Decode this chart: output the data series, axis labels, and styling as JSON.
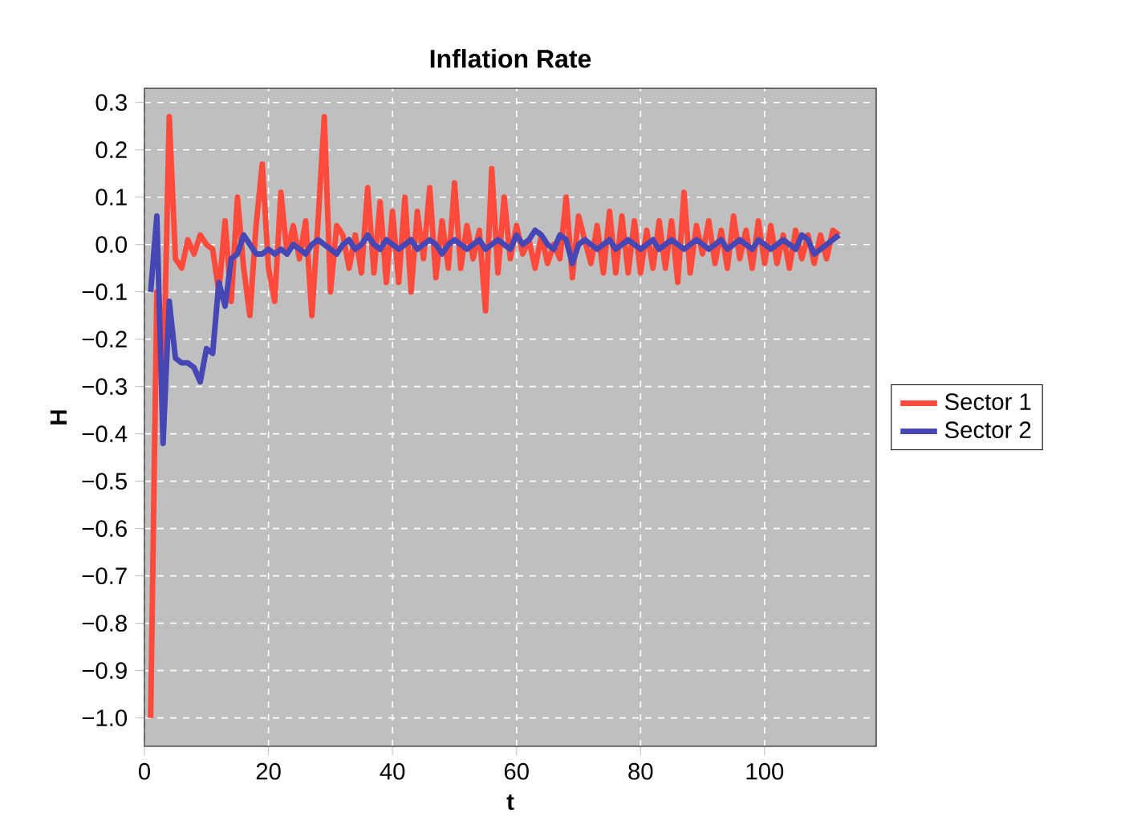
{
  "chart_data": {
    "type": "line",
    "title": "Inflation Rate",
    "xlabel": "t",
    "ylabel": "H",
    "x": [
      1,
      2,
      3,
      4,
      5,
      6,
      7,
      8,
      9,
      10,
      11,
      12,
      13,
      14,
      15,
      16,
      17,
      18,
      19,
      20,
      21,
      22,
      23,
      24,
      25,
      26,
      27,
      28,
      29,
      30,
      31,
      32,
      33,
      34,
      35,
      36,
      37,
      38,
      39,
      40,
      41,
      42,
      43,
      44,
      45,
      46,
      47,
      48,
      49,
      50,
      51,
      52,
      53,
      54,
      55,
      56,
      57,
      58,
      59,
      60,
      61,
      62,
      63,
      64,
      65,
      66,
      67,
      68,
      69,
      70,
      71,
      72,
      73,
      74,
      75,
      76,
      77,
      78,
      79,
      80,
      81,
      82,
      83,
      84,
      85,
      86,
      87,
      88,
      89,
      90,
      91,
      92,
      93,
      94,
      95,
      96,
      97,
      98,
      99,
      100,
      101,
      102,
      103,
      104,
      105,
      106,
      107,
      108,
      109,
      110,
      111,
      112
    ],
    "series": [
      {
        "name": "Sector 1",
        "color": "#ff4a3c",
        "values": [
          -1.0,
          -0.1,
          -0.33,
          0.27,
          -0.03,
          -0.05,
          0.01,
          -0.02,
          0.02,
          0.0,
          -0.01,
          -0.1,
          0.05,
          -0.12,
          0.1,
          -0.05,
          -0.15,
          0.04,
          0.17,
          -0.05,
          -0.12,
          0.11,
          -0.02,
          0.04,
          -0.03,
          0.05,
          -0.15,
          0.05,
          0.27,
          -0.1,
          0.04,
          0.02,
          -0.05,
          0.02,
          -0.06,
          0.12,
          -0.06,
          0.09,
          -0.08,
          0.07,
          -0.08,
          0.1,
          -0.1,
          0.07,
          -0.03,
          0.12,
          -0.07,
          0.05,
          -0.05,
          0.13,
          -0.05,
          0.04,
          -0.03,
          0.03,
          -0.14,
          0.16,
          -0.06,
          0.1,
          -0.03,
          0.04,
          -0.02,
          0.01,
          -0.05,
          0.02,
          -0.04,
          0.0,
          -0.03,
          0.1,
          -0.07,
          0.06,
          0.01,
          -0.04,
          0.04,
          -0.06,
          0.07,
          -0.06,
          0.06,
          -0.06,
          0.05,
          -0.06,
          0.03,
          -0.05,
          0.05,
          -0.05,
          0.05,
          -0.08,
          0.11,
          -0.06,
          0.04,
          -0.02,
          0.05,
          -0.04,
          0.03,
          -0.05,
          0.06,
          -0.03,
          0.03,
          -0.05,
          0.05,
          -0.04,
          0.04,
          -0.04,
          0.02,
          -0.05,
          0.03,
          -0.03,
          0.02,
          -0.04,
          0.02,
          -0.03,
          0.03,
          0.02
        ]
      },
      {
        "name": "Sector 2",
        "color": "#4646b4",
        "values": [
          -0.1,
          0.06,
          -0.42,
          -0.12,
          -0.24,
          -0.25,
          -0.25,
          -0.26,
          -0.29,
          -0.22,
          -0.23,
          -0.08,
          -0.13,
          -0.03,
          -0.02,
          0.02,
          0.0,
          -0.02,
          -0.02,
          -0.01,
          -0.02,
          -0.01,
          -0.02,
          0.0,
          -0.01,
          -0.02,
          0.0,
          0.01,
          0.0,
          -0.01,
          -0.02,
          0.0,
          0.01,
          -0.01,
          0.0,
          0.02,
          0.0,
          -0.01,
          0.01,
          0.0,
          -0.01,
          0.0,
          0.01,
          -0.01,
          0.0,
          0.01,
          0.0,
          -0.02,
          0.0,
          0.01,
          0.0,
          -0.01,
          0.0,
          0.01,
          -0.01,
          0.0,
          0.01,
          0.0,
          -0.01,
          0.02,
          0.0,
          0.01,
          0.03,
          0.02,
          0.0,
          -0.01,
          0.02,
          0.01,
          -0.04,
          0.0,
          0.01,
          0.0,
          -0.01,
          0.0,
          0.01,
          -0.01,
          0.0,
          0.01,
          0.0,
          -0.01,
          0.0,
          0.01,
          -0.01,
          0.0,
          0.01,
          0.0,
          -0.01,
          0.0,
          0.01,
          0.0,
          -0.01,
          0.0,
          0.01,
          -0.01,
          0.0,
          0.01,
          0.0,
          -0.01,
          0.01,
          0.0,
          -0.01,
          0.0,
          0.01,
          0.0,
          -0.01,
          0.02,
          0.01,
          -0.02,
          -0.01,
          0.0,
          0.01,
          0.02
        ]
      }
    ],
    "xlim": [
      0,
      118
    ],
    "xticks": [
      0,
      20,
      40,
      60,
      80,
      100
    ],
    "ylim": [
      -1.06,
      0.33
    ],
    "yticks": [
      {
        "value": 0.3,
        "label": "0.3"
      },
      {
        "value": 0.2,
        "label": "0.2"
      },
      {
        "value": 0.1,
        "label": "0.1"
      },
      {
        "value": 0.0,
        "label": "0.0"
      },
      {
        "value": -0.1,
        "label": "−0.1"
      },
      {
        "value": -0.2,
        "label": "−0.2"
      },
      {
        "value": -0.3,
        "label": "−0.3"
      },
      {
        "value": -0.4,
        "label": "−0.4"
      },
      {
        "value": -0.5,
        "label": "−0.5"
      },
      {
        "value": -0.6,
        "label": "−0.6"
      },
      {
        "value": -0.7,
        "label": "−0.7"
      },
      {
        "value": -0.8,
        "label": "−0.8"
      },
      {
        "value": -0.9,
        "label": "−0.9"
      },
      {
        "value": -1.0,
        "label": "−1.0"
      }
    ],
    "grid": true,
    "legend": "right",
    "line_style": "solid"
  }
}
